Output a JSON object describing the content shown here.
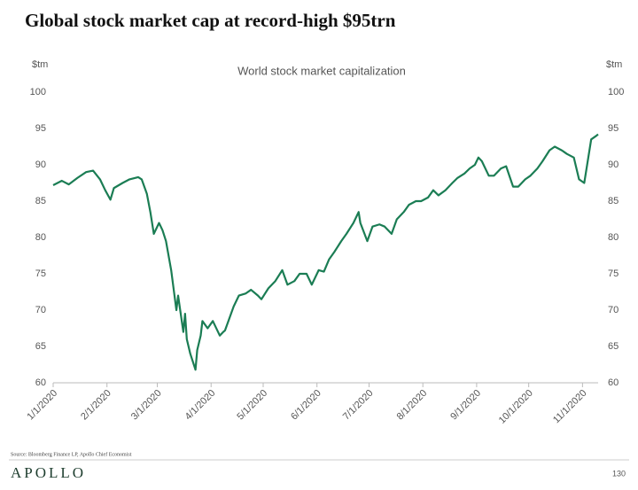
{
  "header": {
    "title": "Global stock market cap at record-high $95trn"
  },
  "chart_data": {
    "type": "line",
    "title": "World stock market capitalization",
    "y_label": "$tm",
    "y2_label": "$tm",
    "x": [
      "1/1/2020",
      "1/6/2020",
      "1/10/2020",
      "1/15/2020",
      "1/20/2020",
      "1/24/2020",
      "1/28/2020",
      "1/31/2020",
      "2/3/2020",
      "2/5/2020",
      "2/10/2020",
      "2/14/2020",
      "2/19/2020",
      "2/21/2020",
      "2/24/2020",
      "2/26/2020",
      "2/28/2020",
      "3/2/2020",
      "3/4/2020",
      "3/6/2020",
      "3/9/2020",
      "3/12/2020",
      "3/13/2020",
      "3/16/2020",
      "3/17/2020",
      "3/18/2020",
      "3/20/2020",
      "3/23/2020",
      "3/24/2020",
      "3/26/2020",
      "3/27/2020",
      "3/30/2020",
      "4/2/2020",
      "4/6/2020",
      "4/8/2020",
      "4/9/2020",
      "4/14/2020",
      "4/17/2020",
      "4/21/2020",
      "4/24/2020",
      "4/28/2020",
      "4/30/2020",
      "5/4/2020",
      "5/8/2020",
      "5/12/2020",
      "5/15/2020",
      "5/19/2020",
      "5/22/2020",
      "5/26/2020",
      "5/29/2020",
      "6/2/2020",
      "6/5/2020",
      "6/8/2020",
      "6/11/2020",
      "6/15/2020",
      "6/18/2020",
      "6/22/2020",
      "6/25/2020",
      "6/26/2020",
      "6/30/2020",
      "7/3/2020",
      "7/7/2020",
      "7/10/2020",
      "7/14/2020",
      "7/17/2020",
      "7/21/2020",
      "7/24/2020",
      "7/28/2020",
      "7/31/2020",
      "8/4/2020",
      "8/7/2020",
      "8/10/2020",
      "8/14/2020",
      "8/18/2020",
      "8/21/2020",
      "8/25/2020",
      "8/28/2020",
      "8/31/2020",
      "9/2/2020",
      "9/4/2020",
      "9/8/2020",
      "9/11/2020",
      "9/15/2020",
      "9/18/2020",
      "9/22/2020",
      "9/25/2020",
      "9/29/2020",
      "10/2/2020",
      "10/6/2020",
      "10/9/2020",
      "10/13/2020",
      "10/16/2020",
      "10/20/2020",
      "10/23/2020",
      "10/27/2020",
      "10/30/2020",
      "11/2/2020",
      "11/4/2020",
      "11/6/2020",
      "11/9/2020",
      "11/10/2020"
    ],
    "series": [
      {
        "name": "World stock market capitalization",
        "color": "#1b7d54",
        "values": [
          87.2,
          87.8,
          87.3,
          88.2,
          89.0,
          89.2,
          88.0,
          86.5,
          85.2,
          86.8,
          87.5,
          88.0,
          88.3,
          88.0,
          86.0,
          83.5,
          80.5,
          82.0,
          81.0,
          79.5,
          75.5,
          70.0,
          72.0,
          67.0,
          69.5,
          66.0,
          64.0,
          61.8,
          64.5,
          66.5,
          68.5,
          67.5,
          68.5,
          66.5,
          67.0,
          67.2,
          70.5,
          72.0,
          72.3,
          72.8,
          72.0,
          71.5,
          73.0,
          74.0,
          75.5,
          73.5,
          74.0,
          75.0,
          75.0,
          73.5,
          75.5,
          75.3,
          77.0,
          78.0,
          79.5,
          80.5,
          82.0,
          83.5,
          82.0,
          79.5,
          81.5,
          81.8,
          81.5,
          80.5,
          82.5,
          83.5,
          84.5,
          85.0,
          85.0,
          85.5,
          86.5,
          85.8,
          86.5,
          87.5,
          88.2,
          88.8,
          89.5,
          90.0,
          91.0,
          90.5,
          88.5,
          88.5,
          89.5,
          89.8,
          87.0,
          87.0,
          88.0,
          88.5,
          89.5,
          90.5,
          92.0,
          92.5,
          92.0,
          91.5,
          91.0,
          88.0,
          87.5,
          90.5,
          93.5,
          94.0,
          94.2
        ]
      }
    ],
    "xlim": [
      "1/1/2020",
      "11/10/2020"
    ],
    "xticks": [
      "1/1/2020",
      "2/1/2020",
      "3/1/2020",
      "4/1/2020",
      "5/1/2020",
      "6/1/2020",
      "7/1/2020",
      "8/1/2020",
      "9/1/2020",
      "10/1/2020",
      "11/1/2020"
    ],
    "ylim": [
      60,
      100
    ],
    "yticks": [
      60,
      65,
      70,
      75,
      80,
      85,
      90,
      95,
      100
    ],
    "y2lim": [
      60,
      100
    ],
    "y2ticks": [
      60,
      65,
      70,
      75,
      80,
      85,
      90,
      95,
      100
    ],
    "grid": false
  },
  "footer": {
    "source": "Source: Bloomberg Finance LP, Apollo Chief Economist",
    "logo": "APOLLO",
    "page": "130"
  }
}
